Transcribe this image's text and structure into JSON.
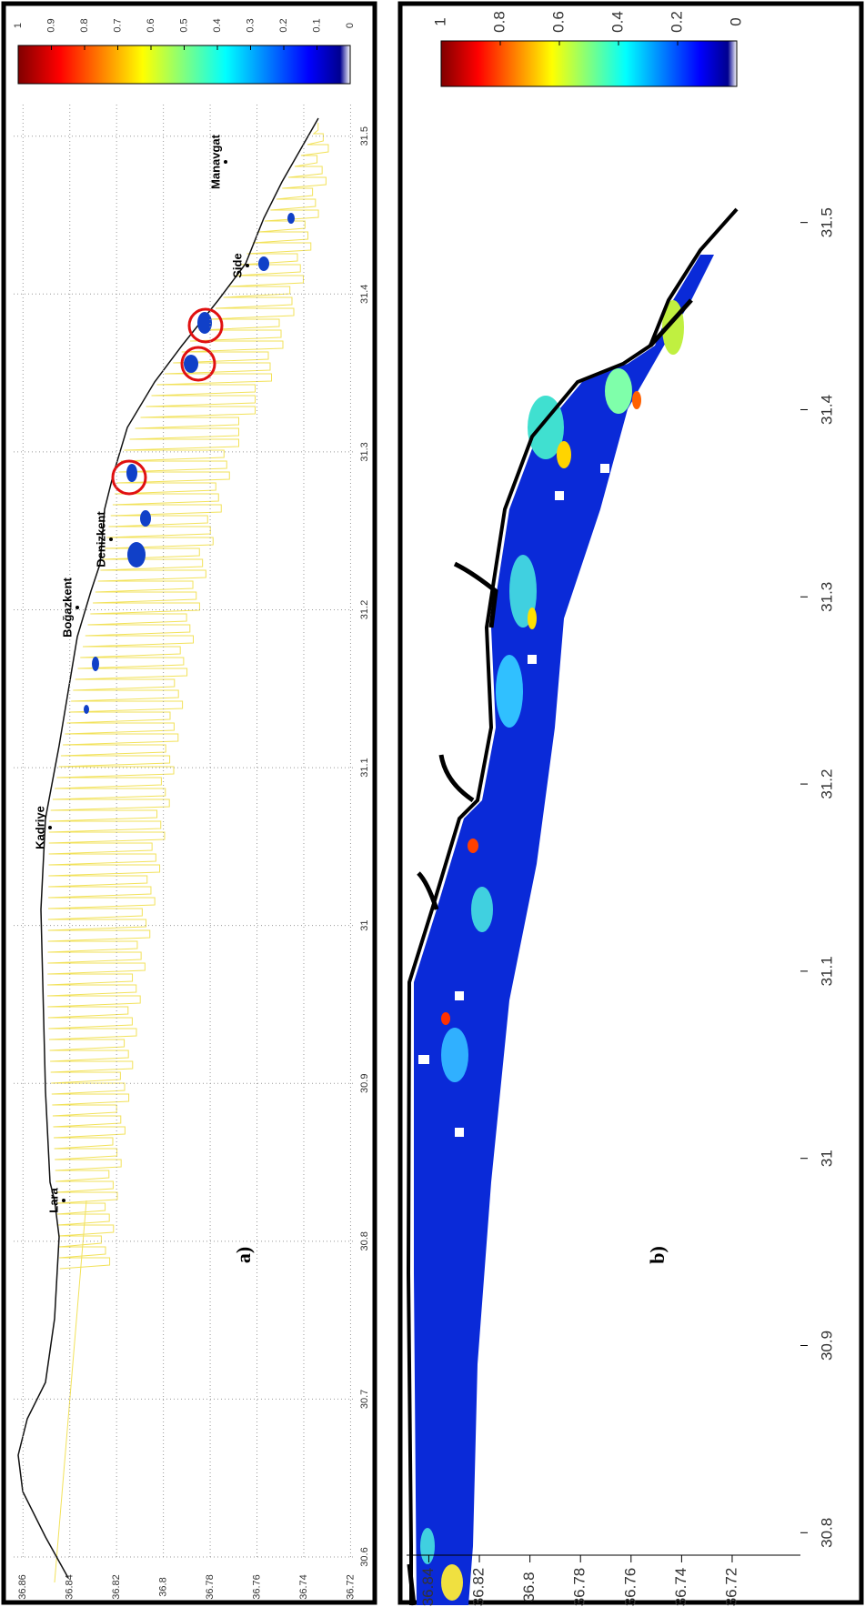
{
  "panels": [
    {
      "label": "a)",
      "colorbar": {
        "lim": [
          0,
          1
        ],
        "ticks": [
          1,
          0.9,
          0.8,
          0.7,
          0.6,
          0.5,
          0.4,
          0.3,
          0.2,
          0.1,
          0
        ]
      },
      "x_axis": {
        "lim": [
          30.6,
          31.52
        ],
        "ticks": [
          30.6,
          30.7,
          30.8,
          30.9,
          31,
          31.1,
          31.2,
          31.3,
          31.4,
          31.5
        ]
      },
      "y_axis": {
        "lim": [
          36.719,
          36.864
        ],
        "ticks": [
          36.86,
          36.84,
          36.82,
          36.8,
          36.78,
          36.76,
          36.74,
          36.72
        ]
      },
      "grid": true,
      "places": [
        "Lara",
        "Kadriye",
        "Boğazkent",
        "Denizkent",
        "Side",
        "Manavgat"
      ]
    },
    {
      "label": "b)",
      "colorbar": {
        "lim": [
          0,
          1
        ],
        "ticks": [
          1,
          0.8,
          0.6,
          0.4,
          0.2,
          0
        ]
      },
      "x_axis": {
        "lim": [
          30.788,
          31.546
        ],
        "ticks": [
          30.8,
          30.9,
          31,
          31.1,
          31.2,
          31.3,
          31.4,
          31.5
        ]
      },
      "y_axis": {
        "lim": [
          36.693,
          36.847
        ],
        "ticks": [
          36.84,
          36.82,
          36.8,
          36.78,
          36.76,
          36.74,
          36.72
        ]
      },
      "grid": false
    }
  ]
}
